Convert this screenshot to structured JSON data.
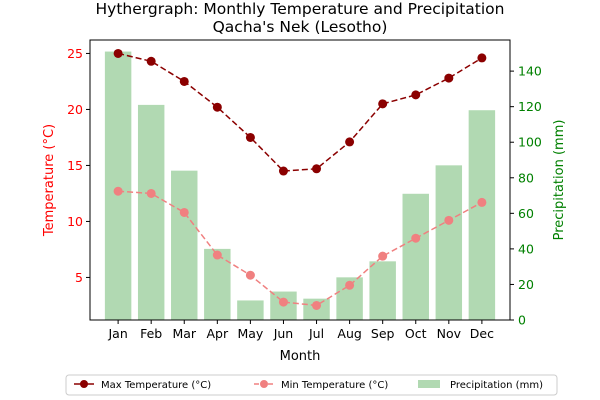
{
  "chart_data": {
    "type": "bar+line",
    "title": "Hythergraph: Monthly Temperature and Precipitation",
    "subtitle": "Qacha's Nek (Lesotho)",
    "xlabel": "Month",
    "ylabel_left": "Temperature (°C)",
    "ylabel_right": "Precipitation (mm)",
    "categories": [
      "Jan",
      "Feb",
      "Mar",
      "Apr",
      "May",
      "Jun",
      "Jul",
      "Aug",
      "Sep",
      "Oct",
      "Nov",
      "Dec"
    ],
    "ylim_left": [
      1.2,
      26.2
    ],
    "ylim_right": [
      0,
      157.5
    ],
    "yticks_left": [
      5,
      10,
      15,
      20,
      25
    ],
    "yticks_right": [
      0,
      20,
      40,
      60,
      80,
      100,
      120,
      140
    ],
    "grid": false,
    "legend_placement": "bottom-center",
    "series": [
      {
        "name": "Max Temperature (°C)",
        "axis": "left",
        "kind": "line",
        "style": "dashed",
        "marker": "circle",
        "color": "#8b0000",
        "values": [
          25.0,
          24.3,
          22.5,
          20.2,
          17.5,
          14.5,
          14.7,
          17.1,
          20.5,
          21.3,
          22.8,
          24.6
        ]
      },
      {
        "name": "Min Temperature (°C)",
        "axis": "left",
        "kind": "line",
        "style": "dashed",
        "marker": "circle",
        "color": "#f08080",
        "values": [
          12.7,
          12.5,
          10.8,
          7.0,
          5.2,
          2.8,
          2.5,
          4.3,
          6.9,
          8.5,
          10.1,
          11.7
        ]
      },
      {
        "name": "Precipitation (mm)",
        "axis": "right",
        "kind": "bar",
        "color": "#b1d9b2",
        "values": [
          151,
          121,
          84,
          40,
          11,
          16,
          12,
          24,
          33,
          71,
          87,
          118
        ]
      }
    ],
    "axis_colors": {
      "left": "#ff0000",
      "right": "#008000"
    }
  }
}
